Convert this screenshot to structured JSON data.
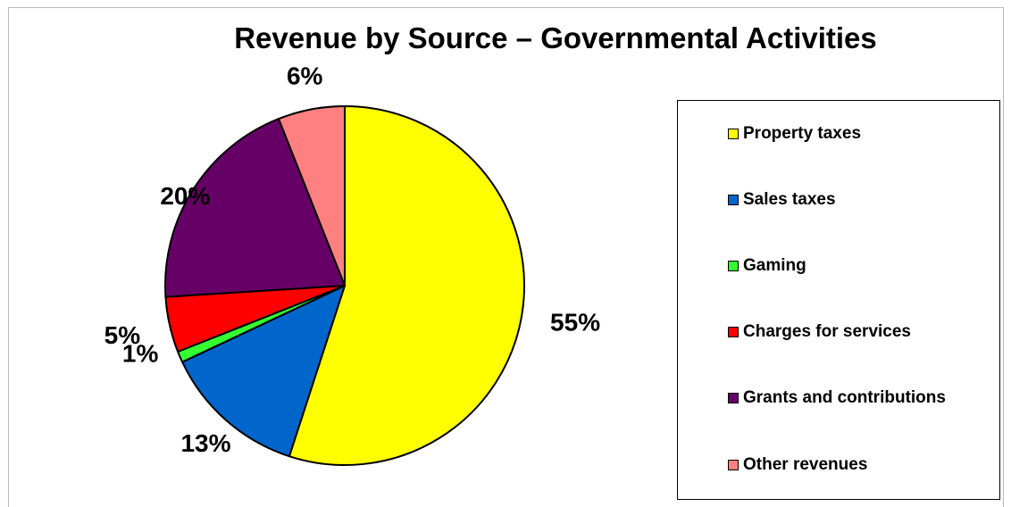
{
  "chart_data": {
    "type": "pie",
    "title": "Revenue by Source – Governmental Activities",
    "categories": [
      "Property taxes",
      "Sales taxes",
      "Gaming",
      "Charges for services",
      "Grants and contributions",
      "Other revenues"
    ],
    "values": [
      55,
      13,
      1,
      5,
      20,
      6
    ],
    "labels": [
      "55%",
      "13%",
      "1%",
      "5%",
      "20%",
      "6%"
    ],
    "colors": [
      "#FFFF00",
      "#0066CC",
      "#33FF33",
      "#FF0000",
      "#660066",
      "#FF8080"
    ],
    "legend_position": "right",
    "start_angle": "top",
    "direction": "clockwise"
  }
}
